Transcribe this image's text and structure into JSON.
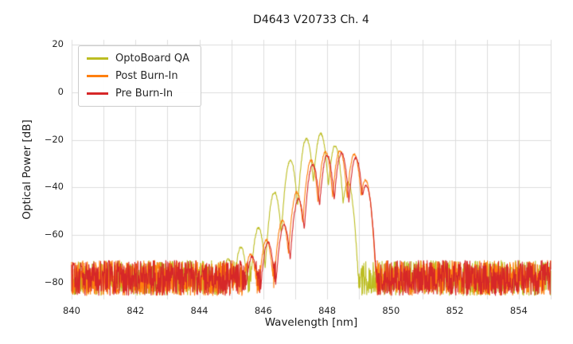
{
  "chart_data": {
    "type": "line",
    "title": "D4643 V20733 Ch. 4",
    "xlabel": "Wavelength [nm]",
    "ylabel": "Optical Power [dB]",
    "xlim": [
      840,
      855
    ],
    "ylim": [
      -87,
      22
    ],
    "xticks": [
      840,
      842,
      844,
      846,
      848,
      850,
      852,
      854
    ],
    "yticks": [
      20,
      0,
      -20,
      -40,
      -60,
      -80
    ],
    "grid": true,
    "grid_color": "#dcdcdc",
    "legend_position": "upper left",
    "noise_floor_db": -78,
    "noise_amplitude_db": 7.5,
    "sample_step_nm": 0.01,
    "series": [
      {
        "name": "OptoBoard QA",
        "color": "#bcbd22",
        "mode_width_nm": 0.26,
        "mode_rolloff_db": 26,
        "mode_peaks": [
          [
            844.9,
            -70
          ],
          [
            845.3,
            -65
          ],
          [
            845.85,
            -57
          ],
          [
            846.35,
            -42
          ],
          [
            846.85,
            -28.5
          ],
          [
            847.35,
            -19.5
          ],
          [
            847.8,
            -17.5
          ],
          [
            848.25,
            -22.5
          ],
          [
            848.65,
            -38
          ]
        ]
      },
      {
        "name": "Post Burn-In",
        "color": "#ff7f0e",
        "mode_width_nm": 0.26,
        "mode_rolloff_db": 26,
        "mode_peaks": [
          [
            845.6,
            -68
          ],
          [
            846.1,
            -62
          ],
          [
            846.6,
            -54
          ],
          [
            847.05,
            -42
          ],
          [
            847.5,
            -28.5
          ],
          [
            847.95,
            -25
          ],
          [
            848.4,
            -24.5
          ],
          [
            848.85,
            -26
          ],
          [
            849.2,
            -37
          ]
        ]
      },
      {
        "name": "Pre Burn-In",
        "color": "#d62728",
        "mode_width_nm": 0.26,
        "mode_rolloff_db": 26,
        "mode_peaks": [
          [
            845.65,
            -69
          ],
          [
            846.15,
            -63
          ],
          [
            846.65,
            -56
          ],
          [
            847.1,
            -45
          ],
          [
            847.55,
            -30.5
          ],
          [
            848.0,
            -26.5
          ],
          [
            848.45,
            -25.5
          ],
          [
            848.9,
            -27.5
          ],
          [
            849.22,
            -39
          ]
        ]
      }
    ]
  }
}
